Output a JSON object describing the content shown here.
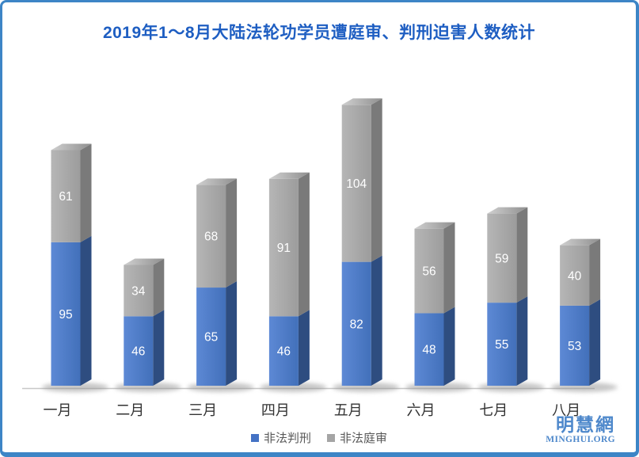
{
  "chart_data": {
    "type": "bar",
    "stacked": true,
    "style": "3d-column",
    "title": "2019年1～8月大陆法轮功学员遭庭审、判刑迫害人数统计",
    "categories": [
      "一月",
      "二月",
      "三月",
      "四月",
      "五月",
      "六月",
      "七月",
      "八月"
    ],
    "series": [
      {
        "name": "非法判刑",
        "color": "#4472c4",
        "values": [
          95,
          46,
          65,
          46,
          82,
          48,
          55,
          53
        ]
      },
      {
        "name": "非法庭审",
        "color": "#a5a5a5",
        "values": [
          61,
          34,
          68,
          91,
          104,
          56,
          59,
          40
        ]
      }
    ],
    "legend_position": "bottom",
    "gridlines": false,
    "y_axis_visible": false,
    "value_labels": "inside-white"
  },
  "watermark": {
    "cn": "明慧網",
    "en": "MINGHUI.ORG"
  },
  "colors": {
    "title_blue": "#1e5ec2",
    "frame_blue": "#3d85c6",
    "bar_blue_front_light": "#5d89d5",
    "bar_blue_front_dark": "#4270ba",
    "bar_blue_side": "#2e4d80",
    "bar_gray_front_light": "#b6b6b6",
    "bar_gray_front_dark": "#9c9c9c",
    "bar_gray_side": "#7a7a7a",
    "bar_gray_top_light": "#d0d0d0",
    "bar_gray_top_dark": "#8f8f8f",
    "axis_line": "#c8c8c8",
    "value_label_text": "#ffffff",
    "legend_text": "#595959",
    "month_label": "#333333",
    "watermark_blue": "#4e88cb",
    "shadow": "#8f8f8f"
  }
}
